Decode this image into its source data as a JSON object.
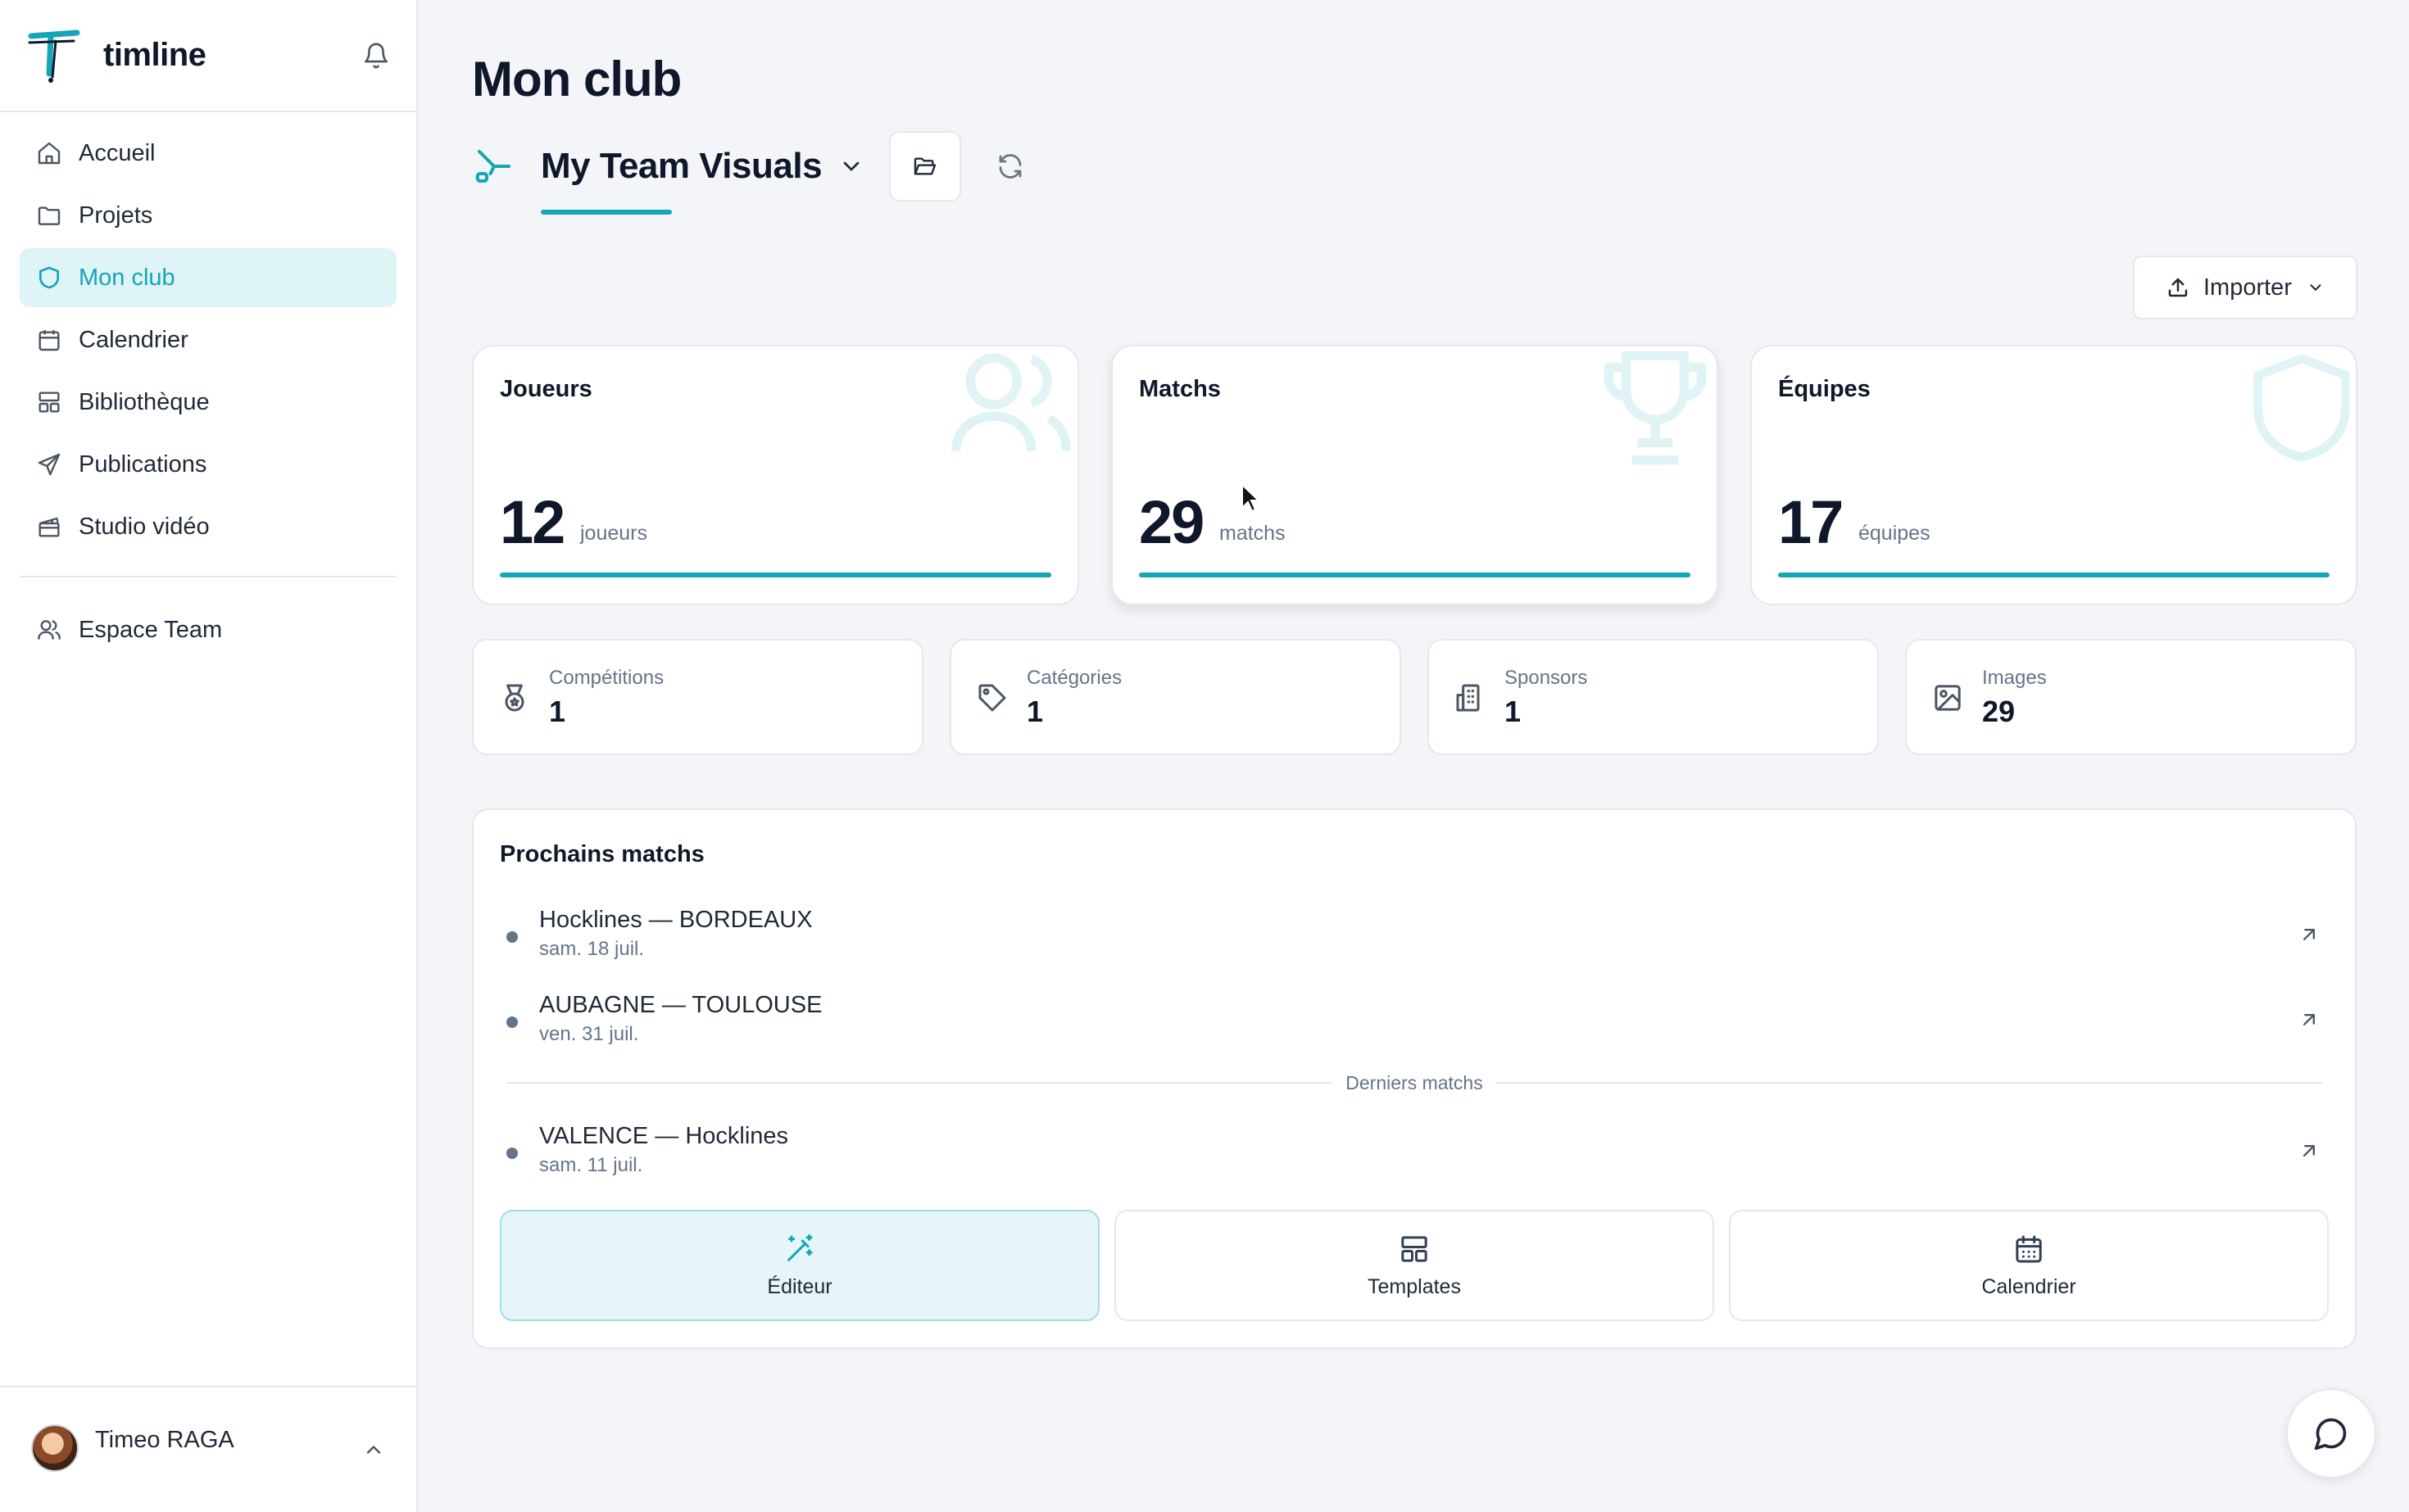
{
  "app": {
    "brand": "timline"
  },
  "sidebar": {
    "items": [
      {
        "label": "Accueil",
        "icon": "home-icon"
      },
      {
        "label": "Projets",
        "icon": "folder-icon"
      },
      {
        "label": "Mon club",
        "icon": "shield-icon",
        "active": true
      },
      {
        "label": "Calendrier",
        "icon": "calendar-icon"
      },
      {
        "label": "Bibliothèque",
        "icon": "library-icon"
      },
      {
        "label": "Publications",
        "icon": "send-icon"
      },
      {
        "label": "Studio vidéo",
        "icon": "clapperboard-icon"
      }
    ],
    "team": {
      "label": "Espace Team",
      "icon": "users-icon"
    },
    "user": {
      "name": "Timeo RAGA"
    }
  },
  "page": {
    "title": "Mon club",
    "club_name": "My Team Visuals",
    "import_label": "Importer"
  },
  "stats": {
    "players": {
      "title": "Joueurs",
      "value": "12",
      "unit": "joueurs"
    },
    "matches": {
      "title": "Matchs",
      "value": "29",
      "unit": "matchs"
    },
    "teams": {
      "title": "Équipes",
      "value": "17",
      "unit": "équipes"
    }
  },
  "minis": [
    {
      "label": "Compétitions",
      "value": "1",
      "icon": "medal-icon"
    },
    {
      "label": "Catégories",
      "value": "1",
      "icon": "tag-icon"
    },
    {
      "label": "Sponsors",
      "value": "1",
      "icon": "building-icon"
    },
    {
      "label": "Images",
      "value": "29",
      "icon": "image-icon"
    }
  ],
  "upcoming": {
    "title": "Prochains matchs",
    "items": [
      {
        "name": "Hocklines — BORDEAUX",
        "date": "sam. 18 juil."
      },
      {
        "name": "AUBAGNE — TOULOUSE",
        "date": "ven. 31 juil."
      }
    ],
    "past_label": "Derniers matchs",
    "past": [
      {
        "name": "VALENCE — Hocklines",
        "date": "sam. 11 juil."
      }
    ]
  },
  "actions": {
    "editor": "Éditeur",
    "templates": "Templates",
    "calendar": "Calendrier"
  },
  "colors": {
    "accent": "#14a5b8",
    "accent_bg": "#dff4f7",
    "page_bg": "#f3f5f8"
  }
}
